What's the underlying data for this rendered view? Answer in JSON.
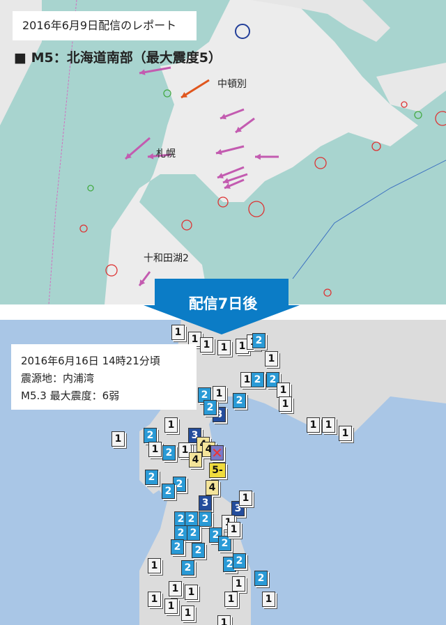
{
  "top_map": {
    "report_label": "2016年6月9日配信のレポート",
    "quake_title": "■ M5：北海道南部（最大震度5）",
    "places": [
      "中頓別",
      "札幌",
      "十和田湖2"
    ],
    "colors": {
      "sea": "#a8d4cf",
      "land": "#eeeeee",
      "arrow": "#c35bb0",
      "main_arrow": "#e0561d"
    }
  },
  "banner": {
    "label": "配信7日後",
    "color": "#0b7cc6"
  },
  "bottom_map": {
    "info": {
      "datetime": "2016年6月16日 14時21分頃",
      "epicenter": "震源地：内浦湾",
      "magnitude": "M5.3 最大震度：6弱"
    },
    "epicenter_icon": "x-mark-icon",
    "intensity_colors": {
      "1": "#f4f4f4",
      "2": "#2a9ad6",
      "3": "#244d9c",
      "4": "#f4e49a",
      "5-": "#f0dc3c"
    },
    "markers": [
      "1",
      "1",
      "1",
      "1",
      "1",
      "1",
      "2",
      "1",
      "1",
      "2",
      "2",
      "1",
      "2",
      "1",
      "2",
      "3",
      "2",
      "1",
      "1",
      "1",
      "1",
      "1",
      "1",
      "2",
      "1",
      "1",
      "3",
      "4",
      "2",
      "4",
      "4",
      "5-",
      "2",
      "2",
      "2",
      "4",
      "3",
      "3",
      "1",
      "2",
      "2",
      "2",
      "1",
      "2",
      "2",
      "2",
      "2",
      "2",
      "2",
      "1",
      "2",
      "2",
      "1",
      "2",
      "2",
      "1",
      "1",
      "1",
      "1",
      "1",
      "1",
      "1",
      "1",
      "1"
    ]
  }
}
